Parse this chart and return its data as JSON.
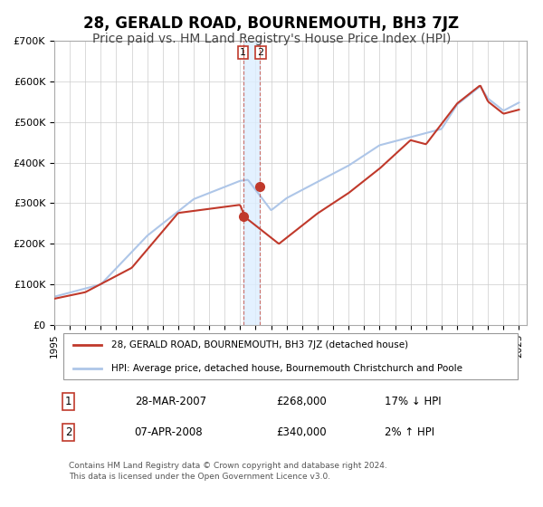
{
  "title": "28, GERALD ROAD, BOURNEMOUTH, BH3 7JZ",
  "subtitle": "Price paid vs. HM Land Registry's House Price Index (HPI)",
  "xlabel": "",
  "ylabel": "",
  "ylim": [
    0,
    700000
  ],
  "xlim_start": 1995.0,
  "xlim_end": 2025.5,
  "yticks": [
    0,
    100000,
    200000,
    300000,
    400000,
    500000,
    600000,
    700000
  ],
  "ytick_labels": [
    "£0",
    "£100K",
    "£200K",
    "£300K",
    "£400K",
    "£500K",
    "£600K",
    "£700K"
  ],
  "xticks": [
    1995,
    1996,
    1997,
    1998,
    1999,
    2000,
    2001,
    2002,
    2003,
    2004,
    2005,
    2006,
    2007,
    2008,
    2009,
    2010,
    2011,
    2012,
    2013,
    2014,
    2015,
    2016,
    2017,
    2018,
    2019,
    2020,
    2021,
    2022,
    2023,
    2024,
    2025
  ],
  "hpi_color": "#aec6e8",
  "price_color": "#c0392b",
  "marker_color": "#c0392b",
  "vband_color": "#ddeeff",
  "vline1_x": 2007.23,
  "vline2_x": 2008.27,
  "marker1_x": 2007.23,
  "marker1_y": 268000,
  "marker2_x": 2008.27,
  "marker2_y": 340000,
  "legend_line1": "28, GERALD ROAD, BOURNEMOUTH, BH3 7JZ (detached house)",
  "legend_line2": "HPI: Average price, detached house, Bournemouth Christchurch and Poole",
  "table_row1": [
    "1",
    "28-MAR-2007",
    "£268,000",
    "17% ↓ HPI"
  ],
  "table_row2": [
    "2",
    "07-APR-2008",
    "£340,000",
    "2% ↑ HPI"
  ],
  "footnote": "Contains HM Land Registry data © Crown copyright and database right 2024.\nThis data is licensed under the Open Government Licence v3.0.",
  "background_color": "#ffffff",
  "grid_color": "#cccccc",
  "title_fontsize": 12,
  "subtitle_fontsize": 10
}
